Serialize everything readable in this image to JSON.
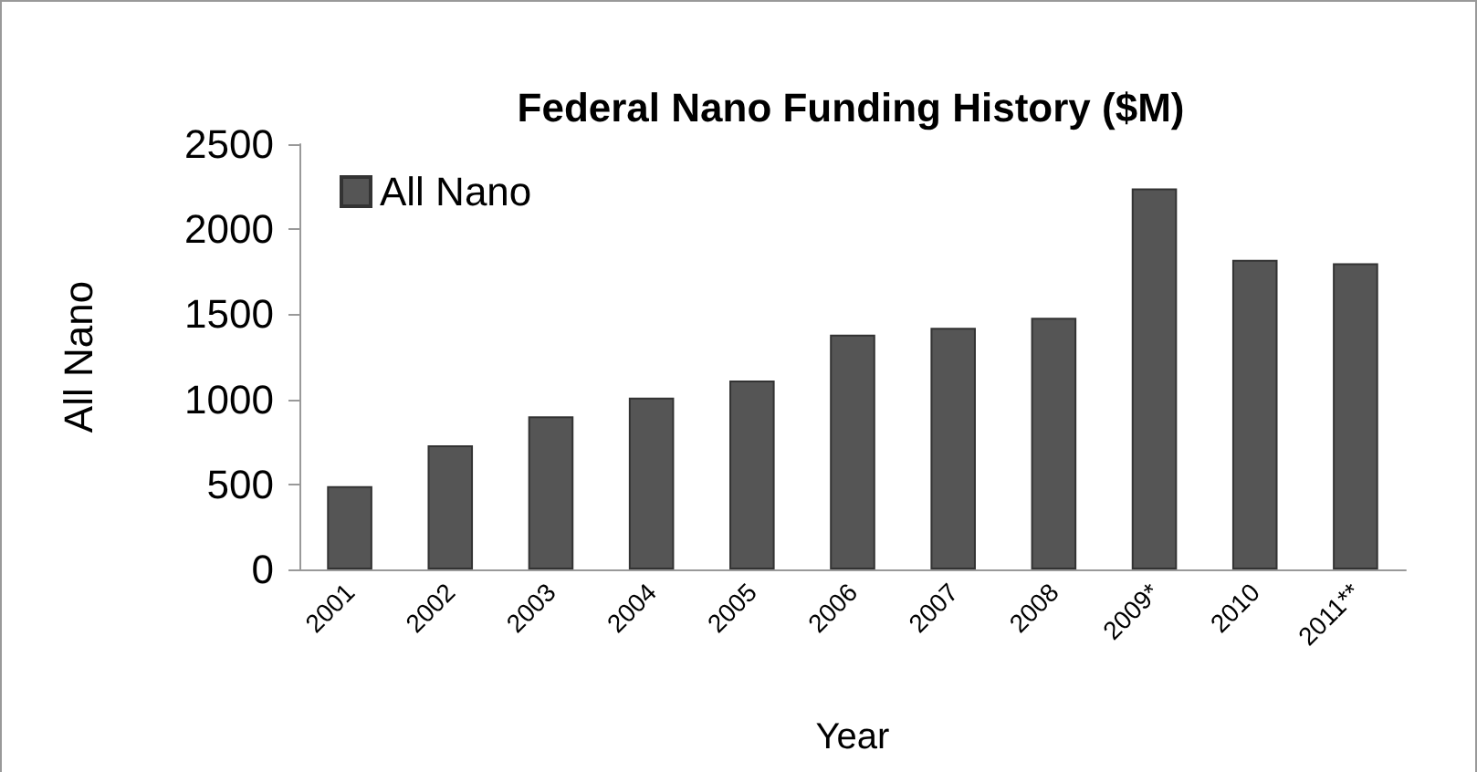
{
  "chart_data": {
    "type": "bar",
    "title": "Federal Nano Funding History ($M)",
    "xlabel": "Year",
    "ylabel": "All Nano",
    "categories": [
      "2001",
      "2002",
      "2003",
      "2004",
      "2005",
      "2006",
      "2007",
      "2008",
      "2009*",
      "2010",
      "2011**"
    ],
    "series": [
      {
        "name": "All Nano",
        "color": "#555555",
        "values": [
          490,
          730,
          900,
          1010,
          1110,
          1380,
          1420,
          1480,
          2240,
          1820,
          1800
        ]
      }
    ],
    "ylim": [
      0,
      2500
    ],
    "yticks": [
      0,
      500,
      1000,
      1500,
      2000,
      2500
    ],
    "grid": false,
    "legend": "top left"
  }
}
